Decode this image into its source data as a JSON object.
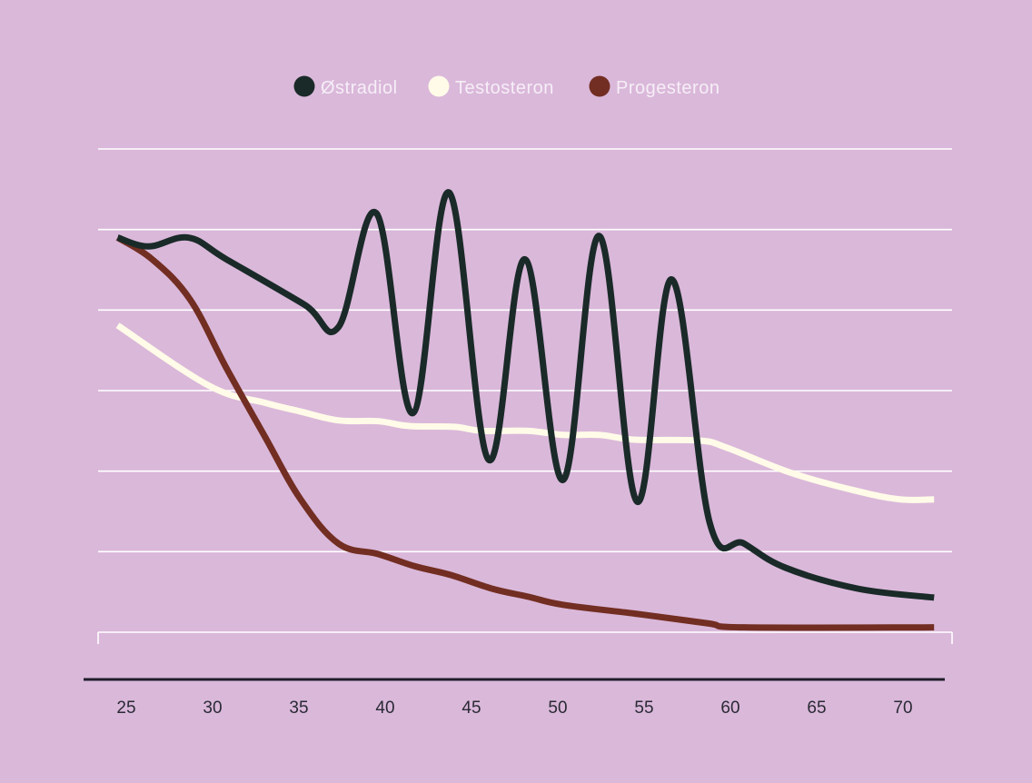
{
  "chart_data": {
    "type": "line",
    "title": "",
    "xlabel": "",
    "ylabel": "",
    "xlim": [
      25,
      70
    ],
    "ylim": [
      0,
      6
    ],
    "grid": true,
    "legend_position": "top-center",
    "x_ticks": [
      25,
      30,
      35,
      40,
      45,
      50,
      55,
      60,
      65,
      70
    ],
    "series": [
      {
        "name": "Østradiol",
        "color": "#1a2a28",
        "x": [
          24.5,
          26.3,
          28.6,
          30.8,
          35.3,
          37.3,
          39.5,
          41.6,
          43.7,
          46.0,
          48.1,
          50.3,
          52.4,
          54.6,
          56.6,
          58.8,
          60.8,
          63.2,
          67.4,
          71.8
        ],
        "y": [
          4.9,
          4.79,
          4.9,
          4.63,
          4.07,
          3.79,
          5.2,
          2.72,
          5.46,
          2.14,
          4.63,
          1.89,
          4.92,
          1.62,
          4.38,
          1.36,
          1.1,
          0.8,
          0.54,
          0.43
        ]
      },
      {
        "name": "Testosteron",
        "color": "#fffbe8",
        "x": [
          24.5,
          29.8,
          33.0,
          35.1,
          37.3,
          39.6,
          41.4,
          44.0,
          45.6,
          48.3,
          50.3,
          52.4,
          54.5,
          58.2,
          59.8,
          63.5,
          67.2,
          69.8,
          71.8
        ],
        "y": [
          3.81,
          3.06,
          2.85,
          2.74,
          2.63,
          2.62,
          2.56,
          2.55,
          2.5,
          2.5,
          2.45,
          2.45,
          2.39,
          2.38,
          2.29,
          1.98,
          1.76,
          1.65,
          1.65
        ]
      },
      {
        "name": "Progesteron",
        "color": "#722e22",
        "x": [
          24.5,
          26.5,
          28.7,
          30.8,
          33.0,
          35.1,
          37.3,
          39.6,
          41.7,
          43.8,
          46.2,
          48.3,
          50.3,
          54.5,
          58.7,
          60.8,
          71.8
        ],
        "y": [
          4.9,
          4.63,
          4.13,
          3.28,
          2.44,
          1.65,
          1.1,
          0.97,
          0.82,
          0.71,
          0.54,
          0.44,
          0.34,
          0.23,
          0.11,
          0.06,
          0.06
        ]
      }
    ]
  }
}
